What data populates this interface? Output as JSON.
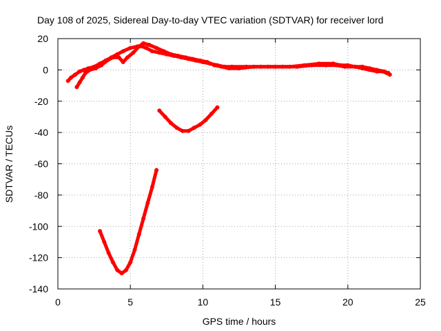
{
  "chart_data": {
    "type": "line",
    "title": "Day 108 of 2025, Sidereal Day-to-day VTEC variation (SDTVAR) for receiver lord",
    "xlabel": "GPS time / hours",
    "ylabel": "SDTVAR / TECUs",
    "xlim": [
      0,
      25
    ],
    "ylim": [
      -140,
      20
    ],
    "x_ticks": [
      0,
      5,
      10,
      15,
      20,
      25
    ],
    "y_ticks": [
      -140,
      -120,
      -100,
      -80,
      -60,
      -40,
      -20,
      0,
      20
    ],
    "grid": true,
    "series_color": "#ff0000",
    "series": [
      {
        "name": "main-trace-a",
        "points": [
          [
            0.7,
            -7
          ],
          [
            0.9,
            -5
          ],
          [
            1.2,
            -3
          ],
          [
            1.5,
            -1
          ],
          [
            1.8,
            0
          ],
          [
            2.1,
            1
          ],
          [
            2.5,
            2
          ],
          [
            2.9,
            4
          ],
          [
            3.3,
            6
          ],
          [
            3.7,
            8
          ],
          [
            4.1,
            10
          ],
          [
            4.5,
            12
          ],
          [
            5.0,
            14
          ],
          [
            5.5,
            15
          ],
          [
            5.8,
            15
          ],
          [
            6.1,
            14
          ],
          [
            6.5,
            12
          ],
          [
            7.0,
            11
          ],
          [
            7.5,
            10
          ],
          [
            8.0,
            9
          ],
          [
            8.5,
            8
          ],
          [
            9.0,
            7
          ],
          [
            9.5,
            6
          ],
          [
            10.0,
            5
          ],
          [
            10.5,
            4
          ],
          [
            11.0,
            3
          ],
          [
            11.5,
            2
          ],
          [
            12.0,
            2
          ],
          [
            13.0,
            2
          ],
          [
            14.0,
            2
          ],
          [
            15.0,
            2
          ],
          [
            16.0,
            2
          ],
          [
            17.0,
            3
          ],
          [
            18.0,
            4
          ],
          [
            19.0,
            4
          ],
          [
            19.5,
            3
          ],
          [
            20.0,
            3
          ],
          [
            20.5,
            2
          ],
          [
            21.0,
            2
          ],
          [
            21.5,
            1
          ],
          [
            22.0,
            0
          ],
          [
            22.5,
            -1
          ],
          [
            22.8,
            -2
          ]
        ]
      },
      {
        "name": "main-trace-b",
        "points": [
          [
            1.3,
            -11
          ],
          [
            1.5,
            -8
          ],
          [
            1.7,
            -5
          ],
          [
            1.9,
            -2
          ],
          [
            2.2,
            0
          ],
          [
            2.6,
            1
          ],
          [
            3.0,
            3
          ],
          [
            3.4,
            6
          ],
          [
            3.8,
            8
          ],
          [
            4.2,
            8
          ],
          [
            4.5,
            5
          ],
          [
            4.8,
            8
          ],
          [
            5.2,
            11
          ],
          [
            5.6,
            15
          ],
          [
            5.9,
            17
          ],
          [
            6.3,
            16
          ],
          [
            6.8,
            14
          ],
          [
            7.3,
            12
          ],
          [
            7.8,
            10
          ],
          [
            8.3,
            9
          ],
          [
            8.8,
            8
          ],
          [
            9.3,
            7
          ],
          [
            9.8,
            6
          ],
          [
            10.3,
            5
          ],
          [
            10.8,
            3
          ],
          [
            11.3,
            2
          ],
          [
            11.8,
            1
          ],
          [
            12.5,
            1
          ],
          [
            13.5,
            2
          ],
          [
            14.5,
            2
          ],
          [
            15.5,
            2
          ],
          [
            16.5,
            2
          ],
          [
            17.5,
            3
          ],
          [
            18.5,
            3
          ],
          [
            19.2,
            3
          ],
          [
            19.8,
            2
          ],
          [
            20.5,
            2
          ],
          [
            21.0,
            1
          ],
          [
            21.5,
            0
          ],
          [
            22.0,
            -1
          ],
          [
            22.4,
            -1
          ],
          [
            22.9,
            -3
          ]
        ]
      },
      {
        "name": "mid-arc",
        "points": [
          [
            7.0,
            -26
          ],
          [
            7.4,
            -30
          ],
          [
            7.8,
            -34
          ],
          [
            8.2,
            -37
          ],
          [
            8.6,
            -39
          ],
          [
            9.0,
            -39
          ],
          [
            9.4,
            -37
          ],
          [
            9.8,
            -35
          ],
          [
            10.2,
            -32
          ],
          [
            10.6,
            -28
          ],
          [
            11.0,
            -24
          ]
        ]
      },
      {
        "name": "deep-dip",
        "points": [
          [
            2.9,
            -103
          ],
          [
            3.2,
            -110
          ],
          [
            3.5,
            -117
          ],
          [
            3.8,
            -123
          ],
          [
            4.1,
            -128
          ],
          [
            4.4,
            -130
          ],
          [
            4.7,
            -128
          ],
          [
            5.0,
            -123
          ],
          [
            5.3,
            -115
          ],
          [
            5.6,
            -105
          ],
          [
            5.9,
            -95
          ],
          [
            6.2,
            -85
          ],
          [
            6.5,
            -75
          ],
          [
            6.8,
            -64
          ]
        ]
      }
    ]
  }
}
